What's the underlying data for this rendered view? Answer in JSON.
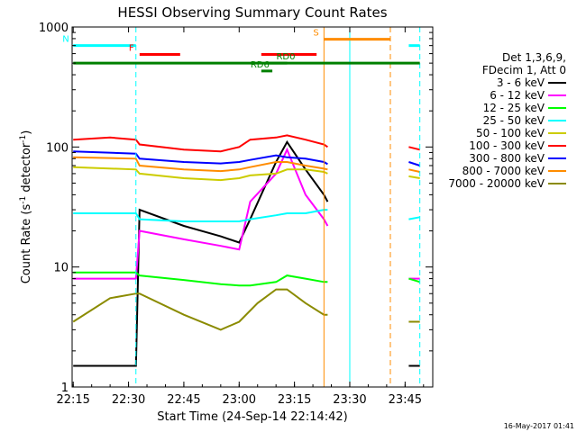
{
  "chart_data": {
    "type": "line",
    "title": "HESSI Observing Summary Count Rates",
    "xlabel": "Start Time (24-Sep-14 22:14:42)",
    "ylabel_main": "Count Rate (s",
    "ylabel_sup1": "-1",
    "ylabel_mid": " detector",
    "ylabel_sup2": "-1",
    "ylabel_end": ")",
    "y_scale": "log",
    "ylim": [
      1,
      1000
    ],
    "xlim": [
      "22:14:42",
      "23:52:30"
    ],
    "x_ticks": [
      "22:15",
      "22:30",
      "22:45",
      "23:00",
      "23:15",
      "23:30",
      "23:45"
    ],
    "y_ticks": [
      "1",
      "10",
      "100",
      "1000"
    ],
    "legend": {
      "placement": "right",
      "header": [
        "Det 1,3,6,9,",
        "FDecim 1, Att 0"
      ],
      "entries": [
        {
          "label": "3 - 6 keV",
          "color": "#000000"
        },
        {
          "label": "6 - 12 keV",
          "color": "#ff00ff"
        },
        {
          "label": "12 - 25 keV",
          "color": "#00ff00"
        },
        {
          "label": "25 - 50 keV",
          "color": "#00ffff"
        },
        {
          "label": "50 - 100 keV",
          "color": "#cccc00"
        },
        {
          "label": "100 - 300 keV",
          "color": "#ff0000"
        },
        {
          "label": "300 - 800 keV",
          "color": "#0000ff"
        },
        {
          "label": "800 - 7000 keV",
          "color": "#ff8c00"
        },
        {
          "label": "7000 - 20000 keV",
          "color": "#8b8b00"
        }
      ]
    },
    "series": [
      {
        "name": "3 - 6 keV",
        "color": "#000000",
        "x": [
          "22:15",
          "22:30",
          "22:32",
          "22:33",
          "22:45",
          "22:55",
          "23:00",
          "23:03",
          "23:10",
          "23:13",
          "23:18",
          "23:23",
          "23:24",
          "23:45",
          "23:46",
          "23:48",
          "23:49"
        ],
        "y": [
          1.5,
          1.5,
          1.5,
          30,
          22,
          18,
          16,
          25,
          75,
          110,
          65,
          40,
          35,
          null,
          1.5,
          1.5,
          1.5
        ]
      },
      {
        "name": "6 - 12 keV",
        "color": "#ff00ff",
        "x": [
          "22:15",
          "22:30",
          "22:32",
          "22:33",
          "22:45",
          "22:55",
          "23:00",
          "23:03",
          "23:10",
          "23:13",
          "23:18",
          "23:23",
          "23:24",
          "23:45",
          "23:46",
          "23:48",
          "23:49"
        ],
        "y": [
          8,
          8,
          8,
          20,
          17,
          15,
          14,
          35,
          60,
          95,
          40,
          25,
          22,
          null,
          8,
          8,
          8
        ]
      },
      {
        "name": "12 - 25 keV",
        "color": "#00ff00",
        "x": [
          "22:15",
          "22:32",
          "22:33",
          "22:45",
          "22:55",
          "23:00",
          "23:03",
          "23:10",
          "23:13",
          "23:18",
          "23:23",
          "23:24",
          "23:45",
          "23:46",
          "23:49"
        ],
        "y": [
          9,
          9,
          8.5,
          7.8,
          7.2,
          7,
          7,
          7.5,
          8.5,
          8,
          7.5,
          7.5,
          null,
          8,
          7.5
        ]
      },
      {
        "name": "25 - 50 keV",
        "color": "#00ffff",
        "x": [
          "22:15",
          "22:32",
          "22:33",
          "22:45",
          "22:55",
          "23:00",
          "23:03",
          "23:10",
          "23:13",
          "23:18",
          "23:23",
          "23:24",
          "23:45",
          "23:46",
          "23:49"
        ],
        "y": [
          28,
          28,
          25,
          24,
          24,
          24,
          25,
          27,
          28,
          28,
          30,
          30,
          null,
          25,
          26
        ]
      },
      {
        "name": "50 - 100 keV",
        "color": "#cccc00",
        "x": [
          "22:15",
          "22:32",
          "22:33",
          "22:45",
          "22:55",
          "23:00",
          "23:03",
          "23:10",
          "23:13",
          "23:18",
          "23:23",
          "23:24",
          "23:45",
          "23:46",
          "23:49"
        ],
        "y": [
          68,
          65,
          60,
          55,
          53,
          55,
          58,
          60,
          65,
          65,
          62,
          60,
          null,
          57,
          55
        ]
      },
      {
        "name": "100 - 300 keV",
        "color": "#ff0000",
        "x": [
          "22:15",
          "22:25",
          "22:32",
          "22:33",
          "22:45",
          "22:55",
          "23:00",
          "23:03",
          "23:10",
          "23:13",
          "23:18",
          "23:23",
          "23:24",
          "23:45",
          "23:46",
          "23:49"
        ],
        "y": [
          115,
          120,
          115,
          105,
          95,
          92,
          100,
          115,
          120,
          125,
          115,
          105,
          100,
          null,
          100,
          95
        ]
      },
      {
        "name": "300 - 800 keV",
        "color": "#0000ff",
        "x": [
          "22:15",
          "22:32",
          "22:33",
          "22:45",
          "22:55",
          "23:00",
          "23:03",
          "23:10",
          "23:13",
          "23:18",
          "23:23",
          "23:24",
          "23:45",
          "23:46",
          "23:49"
        ],
        "y": [
          92,
          88,
          80,
          75,
          73,
          75,
          78,
          85,
          82,
          80,
          75,
          72,
          null,
          75,
          70
        ]
      },
      {
        "name": "800 - 7000 keV",
        "color": "#ff8c00",
        "x": [
          "22:15",
          "22:32",
          "22:33",
          "22:45",
          "22:55",
          "23:00",
          "23:03",
          "23:10",
          "23:13",
          "23:18",
          "23:23",
          "23:24",
          "23:45",
          "23:46",
          "23:49"
        ],
        "y": [
          82,
          80,
          70,
          65,
          63,
          65,
          68,
          75,
          75,
          70,
          66,
          65,
          null,
          65,
          62
        ]
      },
      {
        "name": "7000 - 20000 keV",
        "color": "#8b8b00",
        "x": [
          "22:15",
          "22:25",
          "22:32",
          "22:33",
          "22:45",
          "22:55",
          "23:00",
          "23:05",
          "23:10",
          "23:13",
          "23:18",
          "23:23",
          "23:24",
          "23:45",
          "23:46",
          "23:49"
        ],
        "y": [
          3.5,
          5.5,
          6,
          6,
          4,
          3,
          3.5,
          5,
          6.5,
          6.5,
          5,
          4,
          4,
          null,
          3.5,
          3.5
        ]
      }
    ],
    "state_bars": [
      {
        "label": "N",
        "color": "#00ffff",
        "x": [
          "22:15",
          "22:32"
        ],
        "y": 700
      },
      {
        "label": "",
        "color": "#00ffff",
        "x": [
          "23:46",
          "23:49"
        ],
        "y": 700
      },
      {
        "label": "F",
        "color": "#ff0000",
        "x": [
          "22:33",
          "22:44"
        ],
        "y": 590
      },
      {
        "label": "",
        "color": "#ff0000",
        "x": [
          "23:06",
          "23:21"
        ],
        "y": 590
      },
      {
        "label": "S",
        "color": "#ff8c00",
        "x": [
          "23:23",
          "23:41"
        ],
        "y": 790
      },
      {
        "label": "",
        "color": "#008000",
        "x": [
          "22:15",
          "23:49"
        ],
        "y": 500
      },
      {
        "label": "RD6",
        "color": "#008000",
        "x": [
          "23:06",
          "23:09"
        ],
        "y": 430
      },
      {
        "label": "RD0",
        "color": "#008000",
        "x": [
          "23:07",
          "23:13"
        ],
        "y": 500
      }
    ],
    "vertical_markers": [
      {
        "x": "22:32",
        "color": "#00ffff",
        "dashed": true
      },
      {
        "x": "23:23",
        "color": "#ff8c00",
        "dashed": false
      },
      {
        "x": "23:30",
        "color": "#00ffff",
        "dashed": false
      },
      {
        "x": "23:41",
        "color": "#ff8c00",
        "dashed": true
      },
      {
        "x": "23:49",
        "color": "#00ffff",
        "dashed": true
      }
    ]
  },
  "footer": {
    "timestamp": "16-May-2017 01:41"
  }
}
